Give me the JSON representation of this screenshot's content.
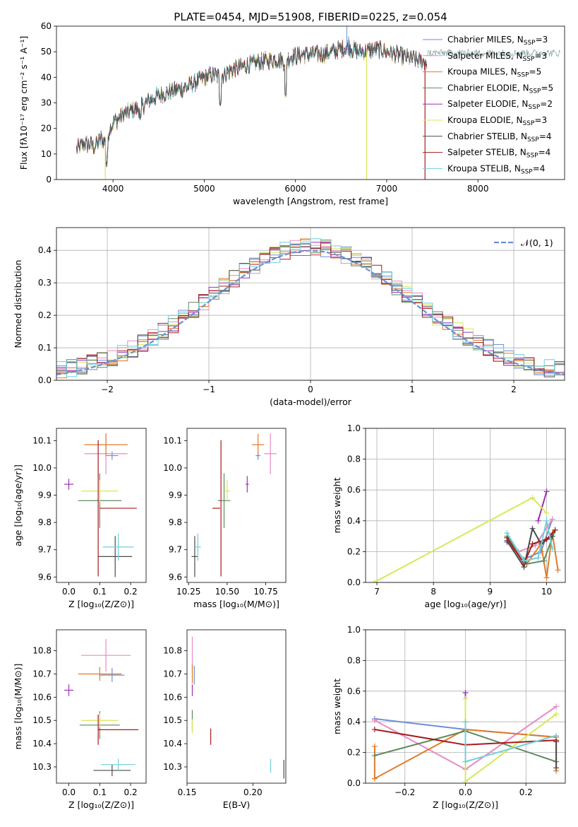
{
  "figure_title": "PLATE=0454, MJD=51908, FIBERID=0225, z=0.054",
  "series_styles": [
    {
      "name": "Chabrier MILES",
      "nssp": "3",
      "color": "#6a8fd6"
    },
    {
      "name": "Salpeter MILES",
      "nssp": "3",
      "color": "#e88ac4"
    },
    {
      "name": "Kroupa MILES",
      "nssp": "5",
      "color": "#e07b2a"
    },
    {
      "name": "Chabrier ELODIE",
      "nssp": "5",
      "color": "#5f8a5f"
    },
    {
      "name": "Salpeter ELODIE",
      "nssp": "2",
      "color": "#9b30b5"
    },
    {
      "name": "Kroupa ELODIE",
      "nssp": "3",
      "color": "#d6e85a"
    },
    {
      "name": "Chabrier STELIB",
      "nssp": "4",
      "color": "#4a4a4a"
    },
    {
      "name": "Salpeter STELIB",
      "nssp": "4",
      "color": "#a81c1c"
    },
    {
      "name": "Kroupa STELIB",
      "nssp": "4",
      "color": "#6fd0dc"
    }
  ],
  "chart_data": [
    {
      "id": "spectrum",
      "type": "line",
      "title": "PLATE=0454, MJD=51908, FIBERID=0225, z=0.054",
      "xlabel": "wavelength [Angstrom, rest frame]",
      "ylabel": "Flux [fλ10⁻¹⁷ erg cm⁻² s⁻¹ A⁻¹]",
      "xlim": [
        3380,
        8950
      ],
      "ylim": [
        0,
        60
      ],
      "xticks": [
        4000,
        5000,
        6000,
        7000,
        8000
      ],
      "yticks": [
        0,
        10,
        20,
        30,
        40,
        50,
        60
      ],
      "legend": "top-right",
      "envelope": {
        "x": [
          3600,
          3700,
          3800,
          3870,
          3930,
          3960,
          4000,
          4100,
          4200,
          4300,
          4400,
          4500,
          4600,
          4700,
          4800,
          4900,
          5000,
          5100,
          5170,
          5250,
          5400,
          5600,
          5800,
          5890,
          5950,
          6100,
          6300,
          6500,
          6560,
          6700,
          6900,
          7100,
          7300,
          7420
        ],
        "y": [
          12,
          14,
          13,
          16,
          14,
          20,
          22,
          25,
          27,
          28,
          31,
          33,
          34,
          35,
          36,
          38,
          40,
          41,
          40,
          42,
          44,
          46,
          47,
          46,
          48,
          49,
          49,
          51,
          52,
          50,
          51,
          49,
          47,
          46
        ]
      },
      "absorption_lines": [
        {
          "x": 3933,
          "depth": 8
        },
        {
          "x": 4300,
          "depth": 5
        },
        {
          "x": 5175,
          "depth": 8
        },
        {
          "x": 5893,
          "depth": 14
        }
      ],
      "spikes": [
        {
          "x": 6563,
          "y": 60
        },
        {
          "x": 6583,
          "y": 56
        }
      ],
      "dropouts": [
        {
          "x": 3915,
          "series": 5
        },
        {
          "x": 6780,
          "series": 5
        },
        {
          "x": 7420,
          "series": 7
        }
      ]
    },
    {
      "id": "residuals",
      "type": "histogram",
      "xlabel": "(data-model)/error",
      "ylabel": "Normed distribution",
      "xlim": [
        -2.5,
        2.5
      ],
      "ylim": [
        0,
        0.47
      ],
      "xticks": [
        -2,
        -1,
        0,
        1,
        2
      ],
      "yticks": [
        0.0,
        0.1,
        0.2,
        0.3,
        0.4
      ],
      "grid": true,
      "legend": "top-right",
      "reference_curve": {
        "name": "𝒩(0, 1)",
        "mean": 0,
        "sd": 1,
        "color": "#6a8fd6",
        "style": "dashed"
      },
      "bin_start": -2.5,
      "bin_width": 0.1
    },
    {
      "id": "age_vs_Z",
      "type": "errorbar",
      "xlabel": "Z [log₁₀(Z/Z⊙)]",
      "ylabel": "age  [log₁₀(age/yr)]",
      "xlim": [
        -0.04,
        0.25
      ],
      "ylim": [
        9.58,
        10.145
      ],
      "xticks": [
        0.0,
        0.1,
        0.2
      ],
      "yticks": [
        9.6,
        9.7,
        9.8,
        9.9,
        10.0,
        10.1
      ],
      "points": [
        {
          "s": 0,
          "x": 0.14,
          "y": 10.045,
          "xerr": 0.02,
          "yerr": 0.015
        },
        {
          "s": 1,
          "x": 0.12,
          "y": 10.052,
          "xerr": 0.07,
          "yerr": 0.075
        },
        {
          "s": 2,
          "x": 0.12,
          "y": 10.085,
          "xerr": 0.07,
          "yerr": 0.04
        },
        {
          "s": 3,
          "x": 0.1,
          "y": 9.88,
          "xerr": 0.07,
          "yerr": 0.1
        },
        {
          "s": 4,
          "x": 0.0,
          "y": 9.94,
          "xerr": 0.015,
          "yerr": 0.02
        },
        {
          "s": 5,
          "x": 0.1,
          "y": 9.915,
          "xerr": 0.06,
          "yerr": 0.04
        },
        {
          "s": 6,
          "x": 0.15,
          "y": 9.675,
          "xerr": 0.055,
          "yerr": 0.075
        },
        {
          "s": 7,
          "x": 0.095,
          "y": 9.852,
          "xerr": 0.0,
          "yerr": 0.25
        },
        {
          "s": 7,
          "x": 0.16,
          "y": 9.852,
          "xerr": 0.06,
          "yerr": 0.0
        },
        {
          "s": 8,
          "x": 0.16,
          "y": 9.71,
          "xerr": 0.05,
          "yerr": 0.05
        }
      ]
    },
    {
      "id": "age_vs_mass",
      "type": "errorbar",
      "xlabel": "mass [log₁₀(M/M⊙)]",
      "ylabel": "",
      "xlim": [
        10.24,
        10.88
      ],
      "ylim": [
        9.58,
        10.145
      ],
      "xticks": [
        10.25,
        10.5,
        10.75
      ],
      "yticks": [
        9.6,
        9.7,
        9.8,
        9.9,
        10.0,
        10.1
      ],
      "points": [
        {
          "s": 0,
          "x": 10.7,
          "y": 10.045,
          "xerr": 0.015,
          "yerr": 0.015
        },
        {
          "s": 1,
          "x": 10.78,
          "y": 10.052,
          "xerr": 0.04,
          "yerr": 0.075
        },
        {
          "s": 2,
          "x": 10.7,
          "y": 10.085,
          "xerr": 0.04,
          "yerr": 0.04
        },
        {
          "s": 3,
          "x": 10.48,
          "y": 9.88,
          "xerr": 0.04,
          "yerr": 0.1
        },
        {
          "s": 4,
          "x": 10.63,
          "y": 9.94,
          "xerr": 0.01,
          "yerr": 0.03
        },
        {
          "s": 5,
          "x": 10.5,
          "y": 9.915,
          "xerr": 0.02,
          "yerr": 0.04
        },
        {
          "s": 6,
          "x": 10.29,
          "y": 9.675,
          "xerr": 0.02,
          "yerr": 0.075
        },
        {
          "s": 7,
          "x": 10.46,
          "y": 9.852,
          "xerr": 0.0,
          "yerr": 0.25
        },
        {
          "s": 7,
          "x": 10.43,
          "y": 9.852,
          "xerr": 0.025,
          "yerr": 0.0
        },
        {
          "s": 8,
          "x": 10.31,
          "y": 9.71,
          "xerr": 0.02,
          "yerr": 0.05
        }
      ]
    },
    {
      "id": "weight_vs_age",
      "type": "line",
      "xlabel": "age  [log₁₀(age/yr)]",
      "ylabel": "mass weight",
      "xlim": [
        6.8,
        10.33
      ],
      "ylim": [
        0,
        1.0
      ],
      "xticks": [
        7,
        8,
        9,
        10
      ],
      "yticks": [
        0.0,
        0.2,
        0.4,
        0.6,
        0.8,
        1.0
      ],
      "grid": true,
      "series": [
        {
          "s": 0,
          "x": [
            9.3,
            9.6,
            9.9,
            10.1
          ],
          "y": [
            0.26,
            0.15,
            0.2,
            0.41
          ]
        },
        {
          "s": 1,
          "x": [
            9.5,
            9.8,
            10.1
          ],
          "y": [
            0.2,
            0.24,
            0.41
          ]
        },
        {
          "s": 2,
          "x": [
            9.3,
            9.65,
            9.9,
            10.0,
            10.1,
            10.2
          ],
          "y": [
            0.27,
            0.12,
            0.25,
            0.03,
            0.32,
            0.08
          ]
        },
        {
          "s": 3,
          "x": [
            9.3,
            9.65,
            9.95,
            10.15
          ],
          "y": [
            0.3,
            0.12,
            0.14,
            0.34
          ]
        },
        {
          "s": 4,
          "x": [
            9.85,
            10.0
          ],
          "y": [
            0.4,
            0.59
          ]
        },
        {
          "s": 5,
          "x": [
            6.95,
            9.75,
            10.0
          ],
          "y": [
            0.0,
            0.55,
            0.45
          ]
        },
        {
          "s": 6,
          "x": [
            9.3,
            9.6,
            9.75,
            9.9,
            10.1
          ],
          "y": [
            0.27,
            0.1,
            0.35,
            0.25,
            0.3
          ]
        },
        {
          "s": 7,
          "x": [
            9.3,
            9.6,
            9.75,
            10.0,
            10.15
          ],
          "y": [
            0.29,
            0.12,
            0.25,
            0.28,
            0.34
          ]
        },
        {
          "s": 8,
          "x": [
            9.3,
            9.6,
            9.85,
            10.0,
            10.1
          ],
          "y": [
            0.32,
            0.14,
            0.16,
            0.4,
            0.22
          ]
        }
      ]
    },
    {
      "id": "mass_vs_Z",
      "type": "errorbar",
      "xlabel": "Z [log₁₀(Z/Z⊙)]",
      "ylabel": "mass [log₁₀(M/M⊙)]",
      "xlim": [
        -0.04,
        0.25
      ],
      "ylim": [
        10.23,
        10.89
      ],
      "xticks": [
        0.0,
        0.1,
        0.2
      ],
      "yticks": [
        10.3,
        10.4,
        10.5,
        10.6,
        10.7,
        10.8
      ],
      "points": [
        {
          "s": 0,
          "x": 0.14,
          "y": 10.695,
          "xerr": 0.04,
          "yerr": 0.03
        },
        {
          "s": 1,
          "x": 0.12,
          "y": 10.78,
          "xerr": 0.08,
          "yerr": 0.07
        },
        {
          "s": 2,
          "x": 0.1,
          "y": 10.7,
          "xerr": 0.07,
          "yerr": 0.03
        },
        {
          "s": 3,
          "x": 0.1,
          "y": 10.48,
          "xerr": 0.065,
          "yerr": 0.06
        },
        {
          "s": 4,
          "x": 0.0,
          "y": 10.63,
          "xerr": 0.015,
          "yerr": 0.025
        },
        {
          "s": 5,
          "x": 0.1,
          "y": 10.5,
          "xerr": 0.06,
          "yerr": 0.03
        },
        {
          "s": 6,
          "x": 0.14,
          "y": 10.285,
          "xerr": 0.06,
          "yerr": 0.025
        },
        {
          "s": 7,
          "x": 0.095,
          "y": 10.46,
          "xerr": 0.0,
          "yerr": 0.065
        },
        {
          "s": 7,
          "x": 0.16,
          "y": 10.46,
          "xerr": 0.065,
          "yerr": 0.0
        },
        {
          "s": 8,
          "x": 0.16,
          "y": 10.31,
          "xerr": 0.055,
          "yerr": 0.025
        }
      ]
    },
    {
      "id": "mass_vs_ebv",
      "type": "errorbar",
      "xlabel": "E(B-V)",
      "ylabel": "",
      "xlim": [
        0.15,
        0.225
      ],
      "ylim": [
        10.23,
        10.89
      ],
      "xticks": [
        0.15,
        0.2
      ],
      "yticks": [
        10.3,
        10.4,
        10.5,
        10.6,
        10.7,
        10.8
      ],
      "points": [
        {
          "s": 0,
          "x": 0.1555,
          "y": 10.695,
          "xerr": 0.0,
          "yerr": 0.04
        },
        {
          "s": 1,
          "x": 0.154,
          "y": 10.79,
          "xerr": 0.0,
          "yerr": 0.07
        },
        {
          "s": 2,
          "x": 0.154,
          "y": 10.7,
          "xerr": 0.0,
          "yerr": 0.04
        },
        {
          "s": 3,
          "x": 0.154,
          "y": 10.5,
          "xerr": 0.0,
          "yerr": 0.045
        },
        {
          "s": 4,
          "x": 0.154,
          "y": 10.63,
          "xerr": 0.0,
          "yerr": 0.025
        },
        {
          "s": 5,
          "x": 0.154,
          "y": 10.475,
          "xerr": 0.0,
          "yerr": 0.03
        },
        {
          "s": 6,
          "x": 0.2235,
          "y": 10.29,
          "xerr": 0.0,
          "yerr": 0.04
        },
        {
          "s": 7,
          "x": 0.168,
          "y": 10.43,
          "xerr": 0.0,
          "yerr": 0.035
        },
        {
          "s": 8,
          "x": 0.2135,
          "y": 10.305,
          "xerr": 0.0,
          "yerr": 0.03
        }
      ]
    },
    {
      "id": "weight_vs_Z",
      "type": "line",
      "xlabel": "Z [log₁₀(Z/Z⊙)]",
      "ylabel": "mass weight",
      "xlim": [
        -0.33,
        0.33
      ],
      "ylim": [
        0,
        1.0
      ],
      "xticks": [
        -0.2,
        0.0,
        0.2
      ],
      "yticks": [
        0.0,
        0.2,
        0.4,
        0.6,
        0.8,
        1.0
      ],
      "grid": true,
      "series": [
        {
          "s": 0,
          "x": [
            -0.3,
            0.0,
            0.3
          ],
          "y": [
            0.42,
            0.35,
            0.3
          ]
        },
        {
          "s": 1,
          "x": [
            -0.3,
            0.0,
            0.3
          ],
          "y": [
            0.41,
            0.09,
            0.5
          ]
        },
        {
          "s": 2,
          "x": [
            -0.3,
            -0.3,
            0.0,
            0.3,
            0.3
          ],
          "y": [
            0.24,
            0.03,
            0.35,
            0.3,
            0.08
          ]
        },
        {
          "s": 3,
          "x": [
            -0.3,
            0.0,
            0.3
          ],
          "y": [
            0.18,
            0.34,
            0.14
          ]
        },
        {
          "s": 4,
          "x": [
            0.0,
            0.0
          ],
          "y": [
            0.59,
            0.4
          ]
        },
        {
          "s": 5,
          "x": [
            0.0,
            0.0,
            0.3
          ],
          "y": [
            0.55,
            0.01,
            0.45
          ]
        },
        {
          "s": 6,
          "x": [
            0.3,
            0.3
          ],
          "y": [
            0.27,
            0.1
          ]
        },
        {
          "s": 7,
          "x": [
            -0.3,
            0.0,
            0.3
          ],
          "y": [
            0.35,
            0.25,
            0.28
          ]
        },
        {
          "s": 8,
          "x": [
            0.0,
            0.0,
            0.3
          ],
          "y": [
            0.4,
            0.14,
            0.31
          ]
        }
      ]
    }
  ]
}
